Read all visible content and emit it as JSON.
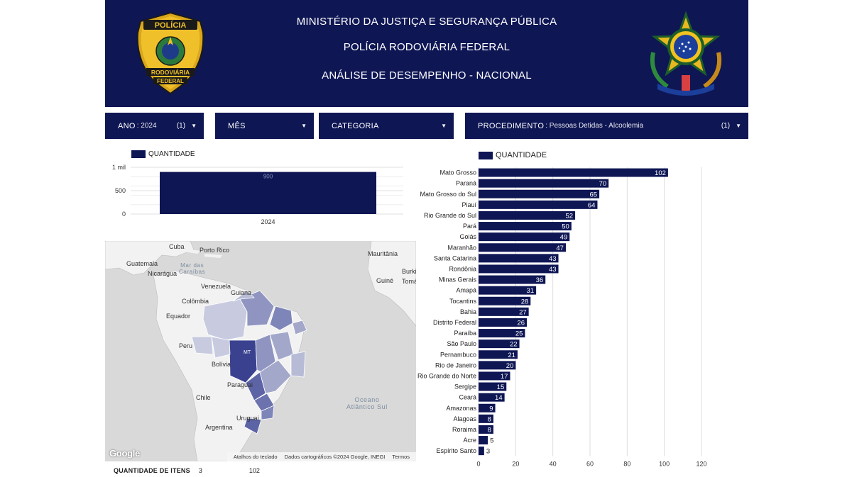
{
  "header": {
    "line1": "MINISTÉRIO DA JUSTIÇA E SEGURANÇA PÚBLICA",
    "line2": "POLÍCIA RODOVIÁRIA FEDERAL",
    "line3": "ANÁLISE DE DESEMPENHO - NACIONAL",
    "badge": {
      "text_top": "POLÍCIA",
      "text_mid": "RODOVIÁRIA",
      "text_bot": "FEDERAL"
    }
  },
  "filters": {
    "ano": {
      "label": "ANO",
      "value": ": 2024",
      "count": "(1)"
    },
    "mes": {
      "label": "MÊS"
    },
    "categoria": {
      "label": "CATEGORIA"
    },
    "procedimento": {
      "label": "PROCEDIMENTO",
      "value": ": Pessoas Detidas - Alcoolemia",
      "count": "(1)"
    }
  },
  "year_chart": {
    "legend": "QUANTIDADE",
    "chart_data": {
      "type": "bar",
      "categories": [
        "2024"
      ],
      "values": [
        900
      ],
      "ylim": [
        0,
        1000
      ],
      "yticks": [
        "0",
        "500",
        "1 mil"
      ],
      "data_labels": [
        "900"
      ]
    }
  },
  "map": {
    "labels": {
      "cuba": "Cuba",
      "porto_rico": "Porto Rico",
      "mauritania": "Mauritânia",
      "guatemala": "Guatemala",
      "mar_das_caraibas": "Mar das\nCaraíbas",
      "nicaragua": "Nicarágua",
      "venezuela": "Venezuela",
      "guiana": "Guiana",
      "colombia": "Colômbia",
      "equador": "Equador",
      "peru": "Peru",
      "bolivia": "Bolívia",
      "paraguai": "Paraguai",
      "chile": "Chile",
      "uruguai": "Uruguai",
      "argentina": "Argentina",
      "burkina": "Burki",
      "guine": "Guiné",
      "tomas": "Tomás",
      "oceano": "Oceano\nAtlântico Sul",
      "mt": "MT"
    },
    "footer": {
      "shortcuts": "Atalhos do teclado",
      "attribution": "Dados cartográficos ©2024 Google, INEGI",
      "terms": "Termos"
    },
    "logo": "Google"
  },
  "summary": {
    "label": "QUANTIDADE DE ITENS",
    "count": "3",
    "total": "102"
  },
  "state_chart": {
    "legend": "QUANTIDADE",
    "chart_data": {
      "type": "bar",
      "orientation": "horizontal",
      "categories": [
        "Mato Grosso",
        "Paraná",
        "Mato Grosso do Sul",
        "Piauí",
        "Rio Grande do Sul",
        "Pará",
        "Goiás",
        "Maranhão",
        "Santa Catarina",
        "Rondônia",
        "Minas Gerais",
        "Amapá",
        "Tocantins",
        "Bahia",
        "Distrito Federal",
        "Paraíba",
        "São Paulo",
        "Pernambuco",
        "Rio de Janeiro",
        "Rio Grande do Norte",
        "Sergipe",
        "Ceará",
        "Amazonas",
        "Alagoas",
        "Roraima",
        "Acre",
        "Espírito Santo"
      ],
      "values": [
        102,
        70,
        65,
        64,
        52,
        50,
        49,
        47,
        43,
        43,
        36,
        31,
        28,
        27,
        26,
        25,
        22,
        21,
        20,
        17,
        15,
        14,
        9,
        8,
        8,
        5,
        3
      ],
      "xlim": [
        0,
        120
      ],
      "xticks": [
        "0",
        "20",
        "40",
        "60",
        "80",
        "100",
        "120"
      ],
      "grid": true
    }
  },
  "colors": {
    "navy": "#0e1654",
    "map_land": "#f2f2f2",
    "map_water": "#d9d9d9",
    "grid": "#dddddd"
  }
}
